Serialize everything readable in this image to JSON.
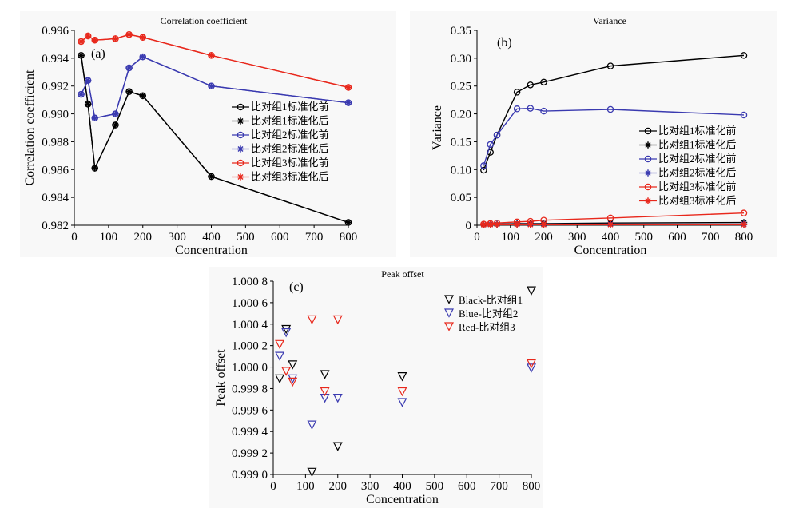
{
  "chart_data": [
    {
      "type": "line",
      "panel_label": "(a)",
      "title": "Correlation coefficient",
      "xlabel": "Concentration",
      "ylabel": "Correlation coefficient",
      "xlim": [
        0,
        800
      ],
      "ylim": [
        0.982,
        0.996
      ],
      "xticks": [
        0,
        100,
        200,
        300,
        400,
        500,
        600,
        700,
        800
      ],
      "yticks": [
        0.982,
        0.984,
        0.986,
        0.988,
        0.99,
        0.992,
        0.994,
        0.996
      ],
      "ytick_labels": [
        "0.982",
        "0.984",
        "0.986",
        "0.988",
        "0.990",
        "0.992",
        "0.994",
        "0.996"
      ],
      "x": [
        20,
        40,
        60,
        120,
        160,
        200,
        400,
        800
      ],
      "legend_position": "right",
      "series": [
        {
          "name": "比对组1标准化前",
          "color": "#000000",
          "marker": "circle",
          "values": [
            0.9942,
            0.9907,
            0.9861,
            0.9892,
            0.9916,
            0.9913,
            0.9855,
            0.9822
          ]
        },
        {
          "name": "比对组1标准化后",
          "color": "#000000",
          "marker": "star",
          "values": [
            0.9942,
            0.9907,
            0.9861,
            0.9892,
            0.9916,
            0.9913,
            0.9855,
            0.9822
          ]
        },
        {
          "name": "比对组2标准化前",
          "color": "#3a3ab0",
          "marker": "circle",
          "values": [
            0.9914,
            0.9924,
            0.9897,
            0.99,
            0.9933,
            0.9941,
            0.992,
            0.9908
          ]
        },
        {
          "name": "比对组2标准化后",
          "color": "#3a3ab0",
          "marker": "star",
          "values": [
            0.9914,
            0.9924,
            0.9897,
            0.99,
            0.9933,
            0.9941,
            0.992,
            0.9908
          ]
        },
        {
          "name": "比对组3标准化前",
          "color": "#e8281c",
          "marker": "circle",
          "values": [
            0.9952,
            0.9956,
            0.9953,
            0.9954,
            0.9957,
            0.9955,
            0.9942,
            0.9919
          ]
        },
        {
          "name": "比对组3标准化后",
          "color": "#e8281c",
          "marker": "star",
          "values": [
            0.9952,
            0.9956,
            0.9953,
            0.9954,
            0.9957,
            0.9955,
            0.9942,
            0.9919
          ]
        }
      ]
    },
    {
      "type": "line",
      "panel_label": "(b)",
      "title": "Variance",
      "xlabel": "Concentration",
      "ylabel": "Variance",
      "xlim": [
        0,
        800
      ],
      "ylim": [
        0,
        0.35
      ],
      "xticks": [
        0,
        100,
        200,
        300,
        400,
        500,
        600,
        700,
        800
      ],
      "yticks": [
        0,
        0.05,
        0.1,
        0.15,
        0.2,
        0.25,
        0.3,
        0.35
      ],
      "ytick_labels": [
        "0",
        "0.05",
        "0.10",
        "0.15",
        "0.20",
        "0.25",
        "0.30",
        "0.35"
      ],
      "x": [
        20,
        40,
        60,
        120,
        160,
        200,
        400,
        800
      ],
      "legend_position": "right",
      "series": [
        {
          "name": "比对组1标准化前",
          "color": "#000000",
          "marker": "circle",
          "values": [
            0.099,
            0.131,
            0.162,
            0.239,
            0.252,
            0.257,
            0.286,
            0.305
          ]
        },
        {
          "name": "比对组1标准化后",
          "color": "#000000",
          "marker": "star",
          "values": [
            0.001,
            0.002,
            0.002,
            0.003,
            0.003,
            0.003,
            0.004,
            0.005
          ]
        },
        {
          "name": "比对组2标准化前",
          "color": "#3a3ab0",
          "marker": "circle",
          "values": [
            0.107,
            0.145,
            0.162,
            0.209,
            0.21,
            0.205,
            0.208,
            0.198
          ]
        },
        {
          "name": "比对组2标准化后",
          "color": "#3a3ab0",
          "marker": "star",
          "values": [
            0.001,
            0.002,
            0.002,
            0.002,
            0.002,
            0.002,
            0.002,
            0.002
          ]
        },
        {
          "name": "比对组3标准化前",
          "color": "#e8281c",
          "marker": "circle",
          "values": [
            0.002,
            0.003,
            0.004,
            0.006,
            0.007,
            0.009,
            0.013,
            0.022
          ]
        },
        {
          "name": "比对组3标准化后",
          "color": "#e8281c",
          "marker": "star",
          "values": [
            0.001,
            0.001,
            0.001,
            0.001,
            0.001,
            0.001,
            0.001,
            0.001
          ]
        }
      ]
    },
    {
      "type": "scatter",
      "panel_label": "(c)",
      "title": "Peak offset",
      "xlabel": "Concentration",
      "ylabel": "Peak offset",
      "xlim": [
        0,
        800
      ],
      "ylim": [
        0.999,
        1.0008
      ],
      "xticks": [
        0,
        100,
        200,
        300,
        400,
        500,
        600,
        700,
        800
      ],
      "yticks": [
        0.999,
        0.9992,
        0.9994,
        0.9996,
        0.9998,
        1.0,
        1.0002,
        1.0004,
        1.0006,
        1.0008
      ],
      "ytick_labels": [
        "0.999 0",
        "0.999 2",
        "0.999 4",
        "0.999 6",
        "0.999 8",
        "1.000 0",
        "1.000 2",
        "1.000 4",
        "1.000 6",
        "1.000 8"
      ],
      "legend_position": "top-right",
      "series": [
        {
          "name": "Black-比对组1",
          "color": "#000000",
          "marker": "triangle-down",
          "x": [
            20,
            40,
            60,
            120,
            160,
            200,
            400,
            800
          ],
          "values": [
            0.99989,
            1.00035,
            1.00002,
            0.99902,
            0.99993,
            0.99926,
            0.99991,
            1.00071
          ]
        },
        {
          "name": "Blue-比对组2",
          "color": "#3a3ab0",
          "marker": "triangle-down",
          "x": [
            20,
            40,
            60,
            120,
            160,
            200,
            400,
            800
          ],
          "values": [
            1.0001,
            1.00032,
            0.99989,
            0.99946,
            0.99971,
            0.99971,
            0.99967,
            0.99999
          ]
        },
        {
          "name": "Red-比对组3",
          "color": "#e8281c",
          "marker": "triangle-down",
          "x": [
            20,
            40,
            60,
            120,
            160,
            200,
            400,
            800
          ],
          "values": [
            1.00021,
            0.99996,
            0.99986,
            1.00044,
            0.99977,
            1.00044,
            0.99977,
            1.00003
          ]
        }
      ]
    }
  ]
}
